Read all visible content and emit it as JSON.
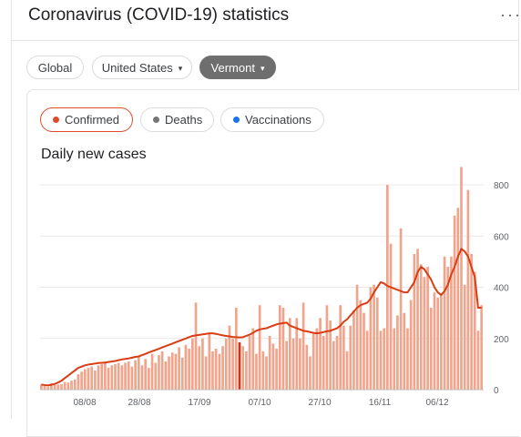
{
  "header": {
    "title": "Coronavirus (COVID-19) statistics",
    "more_icon": "···"
  },
  "locations": {
    "global": "Global",
    "country": "United States",
    "region": "Vermont",
    "caret": "▾"
  },
  "metrics": {
    "confirmed": "Confirmed",
    "deaths": "Deaths",
    "vaccinations": "Vaccinations"
  },
  "colors": {
    "confirmed": "#dd4b2a",
    "deaths": "#757575",
    "vaccinations": "#1a73e8",
    "bar": "#f0a48c",
    "avg_line": "#d93d14"
  },
  "chart_data": {
    "type": "bar",
    "title": "Daily new cases",
    "x_ticks": [
      "08/08",
      "28/08",
      "17/09",
      "07/10",
      "27/10",
      "16/11",
      "06/12"
    ],
    "y_ticks": [
      "0",
      "200",
      "400",
      "600",
      "800"
    ],
    "ylim": [
      0,
      850
    ],
    "y_axis_side": "right",
    "grid": true,
    "bars": [
      20,
      15,
      12,
      25,
      18,
      20,
      22,
      30,
      28,
      35,
      40,
      60,
      70,
      80,
      85,
      90,
      75,
      95,
      100,
      110,
      85,
      95,
      100,
      105,
      95,
      105,
      110,
      90,
      115,
      130,
      95,
      120,
      85,
      140,
      105,
      135,
      150,
      110,
      130,
      145,
      140,
      165,
      125,
      175,
      160,
      200,
      340,
      170,
      200,
      130,
      220,
      150,
      160,
      140,
      170,
      200,
      250,
      200,
      320,
      185,
      170,
      150,
      210,
      240,
      140,
      330,
      150,
      130,
      210,
      180,
      160,
      330,
      320,
      190,
      280,
      200,
      280,
      200,
      340,
      175,
      130,
      220,
      240,
      280,
      210,
      330,
      270,
      190,
      210,
      330,
      250,
      150,
      250,
      310,
      410,
      350,
      300,
      230,
      400,
      410,
      360,
      230,
      240,
      800,
      570,
      240,
      290,
      630,
      300,
      240,
      350,
      530,
      550,
      490,
      440,
      480,
      320,
      380,
      360,
      370,
      520,
      480,
      520,
      680,
      710,
      870,
      410,
      780,
      530,
      460,
      230,
      330
    ],
    "moving_avg": [
      20,
      18,
      17,
      19,
      22,
      28,
      35,
      45,
      55,
      65,
      75,
      85,
      90,
      95,
      98,
      100,
      102,
      104,
      105,
      106,
      108,
      110,
      112,
      115,
      118,
      120,
      122,
      125,
      128,
      130,
      135,
      140,
      145,
      150,
      155,
      160,
      165,
      170,
      175,
      180,
      185,
      190,
      195,
      200,
      205,
      210,
      212,
      214,
      216,
      218,
      220,
      220,
      218,
      215,
      212,
      210,
      208,
      206,
      205,
      204,
      205,
      210,
      215,
      222,
      230,
      235,
      238,
      240,
      245,
      250,
      255,
      258,
      260,
      262,
      250,
      245,
      240,
      235,
      230,
      228,
      225,
      222,
      220,
      222,
      225,
      228,
      230,
      235,
      240,
      250,
      265,
      275,
      290,
      305,
      320,
      330,
      335,
      340,
      355,
      380,
      400,
      420,
      415,
      405,
      400,
      395,
      390,
      385,
      380,
      380,
      400,
      420,
      460,
      480,
      470,
      450,
      430,
      400,
      380,
      370,
      385,
      410,
      450,
      480,
      520,
      550,
      540,
      520,
      480,
      440,
      320,
      320
    ]
  }
}
